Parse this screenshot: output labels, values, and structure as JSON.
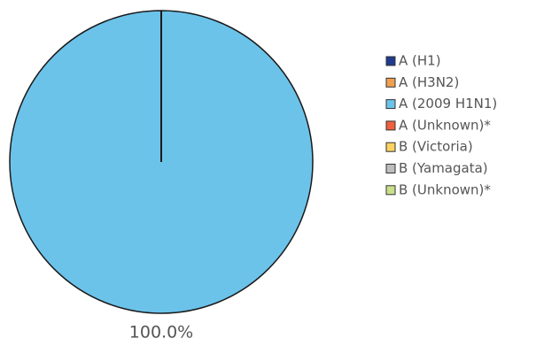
{
  "chart_data": {
    "type": "pie",
    "categories": [
      "A (H1)",
      "A (H3N2)",
      "A (2009 H1N1)",
      "A (Unknown)*",
      "B (Victoria)",
      "B (Yamagata)",
      "B (Unknown)*"
    ],
    "values": [
      0,
      0,
      100,
      0,
      0,
      0,
      0
    ],
    "value_labels": [
      null,
      null,
      "100.0%",
      null,
      null,
      null,
      null
    ],
    "colors": [
      "#1f3a8f",
      "#f0a050",
      "#6cc3ea",
      "#f0603e",
      "#fbd35f",
      "#bdbdbd",
      "#c8e08a"
    ],
    "legend": "right"
  }
}
